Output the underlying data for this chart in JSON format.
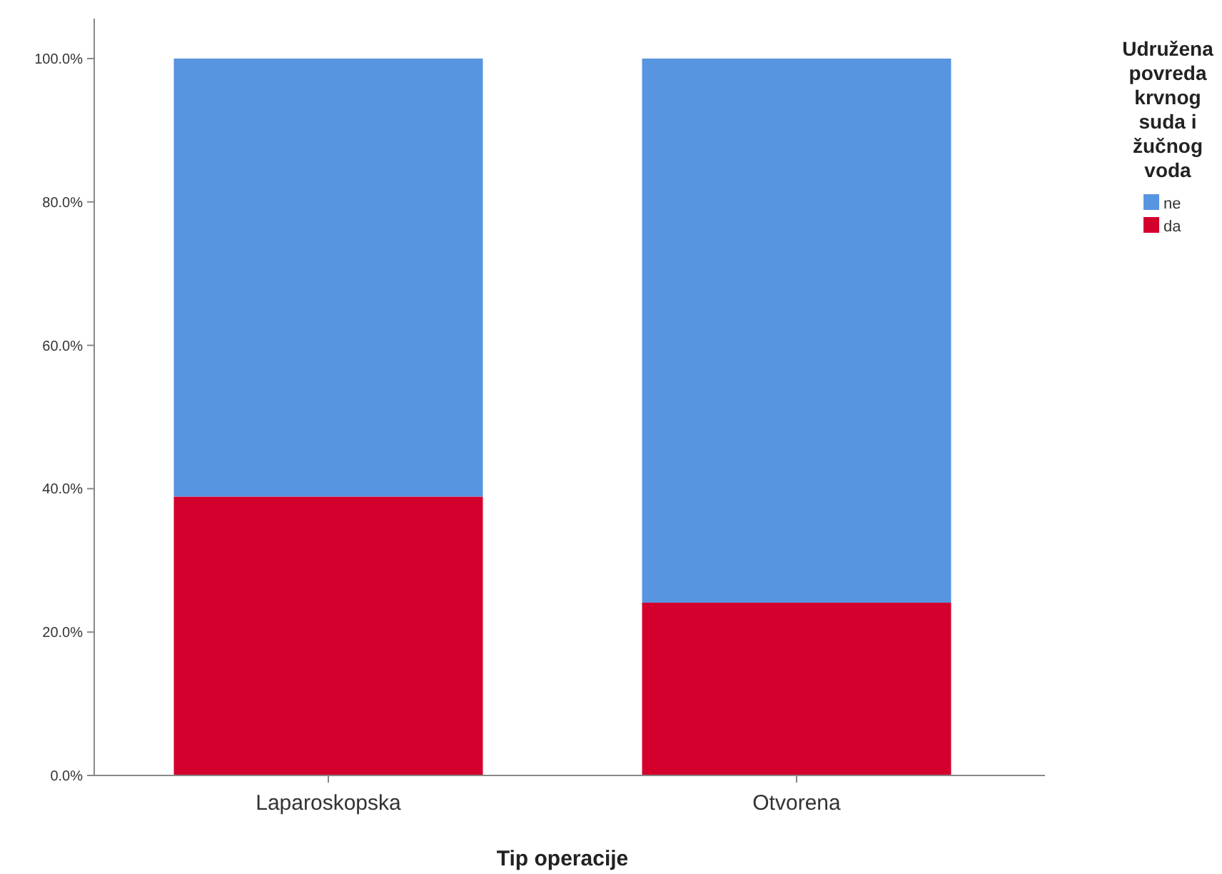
{
  "chart_data": {
    "type": "bar",
    "stacked": true,
    "xlabel": "Tip operacije",
    "legend_title": "Udružena povreda krvnog suda i žučnog voda",
    "legend": "top right",
    "categories": [
      "Laparoskopska",
      "Otvorena"
    ],
    "series": [
      {
        "name": "da",
        "color": "#d3002d",
        "values": [
          38.9,
          24.1
        ]
      },
      {
        "name": "ne",
        "color": "#5795e0",
        "values": [
          61.1,
          75.9
        ]
      }
    ],
    "ylim": [
      0,
      100
    ],
    "yticks": [
      {
        "value": 0,
        "label": "0.0%"
      },
      {
        "value": 20,
        "label": "20.0%"
      },
      {
        "value": 40,
        "label": "40.0%"
      },
      {
        "value": 60,
        "label": "60.0%"
      },
      {
        "value": 80,
        "label": "80.0%"
      },
      {
        "value": 100,
        "label": "100.0%"
      }
    ]
  }
}
